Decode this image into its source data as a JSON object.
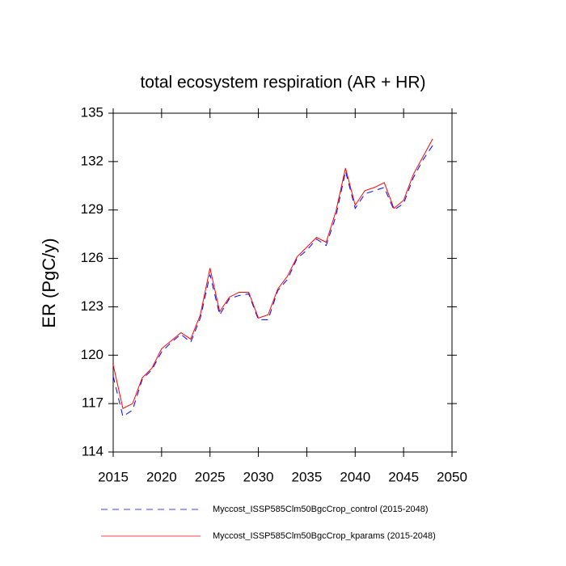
{
  "chart_data": {
    "type": "line",
    "title": "total ecosystem respiration (AR + HR)",
    "y_label": "ER  (PgC/y)",
    "x": [
      2015,
      2016,
      2017,
      2018,
      2019,
      2020,
      2021,
      2022,
      2023,
      2024,
      2025,
      2026,
      2027,
      2028,
      2029,
      2030,
      2031,
      2032,
      2033,
      2034,
      2035,
      2036,
      2037,
      2038,
      2039,
      2040,
      2041,
      2042,
      2043,
      2044,
      2045,
      2046,
      2047,
      2048
    ],
    "series": [
      {
        "name": "Myccost_ISSP585Clm50BgcCrop_control (2015-2048)",
        "color": "#0000ff",
        "dash": true,
        "values": [
          118.7,
          116.2,
          116.6,
          118.5,
          119.1,
          120.2,
          120.8,
          121.3,
          120.8,
          122.3,
          125.0,
          122.5,
          123.5,
          123.7,
          123.8,
          122.2,
          122.2,
          124.0,
          124.7,
          126.0,
          126.5,
          127.2,
          126.8,
          128.6,
          131.4,
          129.1,
          130.0,
          130.2,
          130.4,
          129.0,
          129.4,
          131.0,
          132.1,
          133.0
        ]
      },
      {
        "name": "Myccost_ISSP585Clm50BgcCrop_kparams (2015-2048)",
        "color": "#ff0000",
        "dash": false,
        "values": [
          119.4,
          116.7,
          117.0,
          118.6,
          119.2,
          120.4,
          120.9,
          121.4,
          121.0,
          122.5,
          125.4,
          122.7,
          123.6,
          123.9,
          123.9,
          122.3,
          122.5,
          124.1,
          124.9,
          126.1,
          126.7,
          127.3,
          127.0,
          128.9,
          131.6,
          129.3,
          130.2,
          130.4,
          130.7,
          129.1,
          129.6,
          131.2,
          132.3,
          133.4
        ]
      }
    ],
    "xlim": [
      2015,
      2050
    ],
    "xticks": [
      2015,
      2020,
      2025,
      2030,
      2035,
      2040,
      2045,
      2050
    ],
    "ylim": [
      114,
      135
    ],
    "yticks": [
      114,
      117,
      120,
      123,
      126,
      129,
      132,
      135
    ],
    "grid": false
  }
}
